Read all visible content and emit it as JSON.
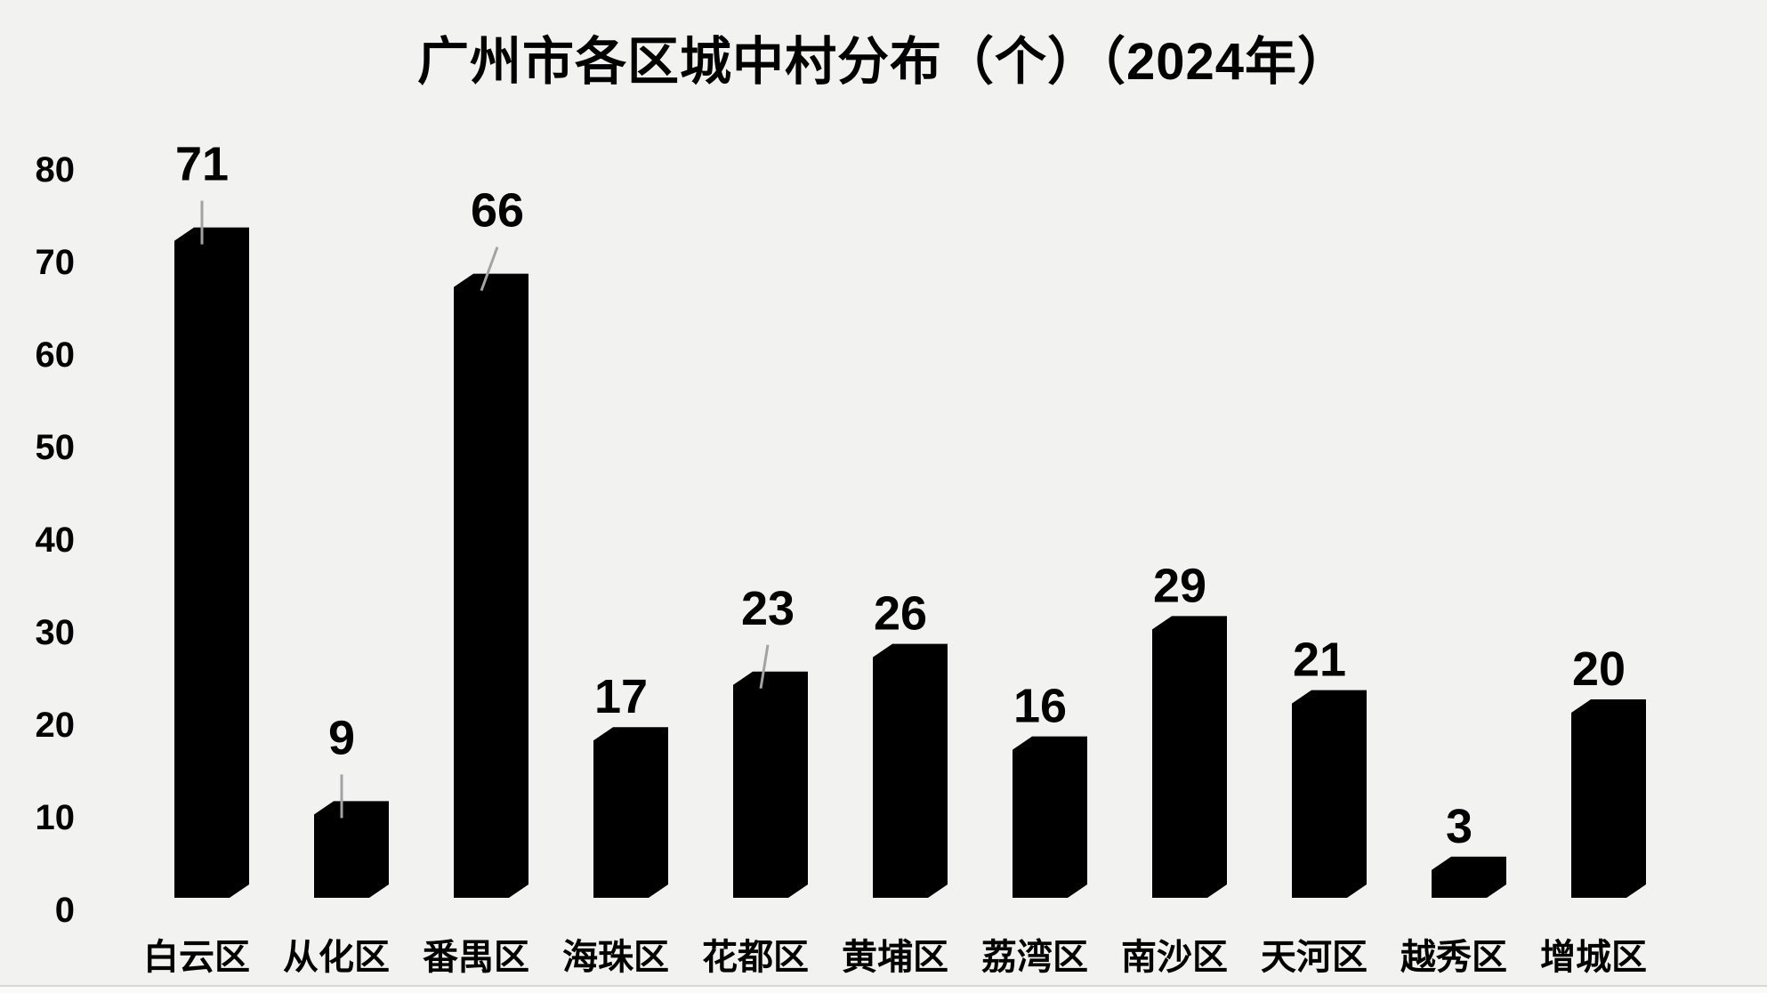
{
  "title": "广州市各区城中村分布（个）（2024年）",
  "colors": {
    "background": "#f2f2f0",
    "bar": "#000000",
    "text": "#000000",
    "leader_line": "#a3a3a3",
    "bottom_edge_line": "#d8d8d8",
    "bottom_strip": "#fafaf9"
  },
  "chart_data": {
    "type": "bar",
    "title": "广州市各区城中村分布（个）（2024年）",
    "categories": [
      "白云区",
      "从化区",
      "番禺区",
      "海珠区",
      "花都区",
      "黄埔区",
      "荔湾区",
      "南沙区",
      "天河区",
      "越秀区",
      "增城区"
    ],
    "values": [
      71,
      9,
      66,
      17,
      23,
      26,
      16,
      29,
      21,
      3,
      20
    ],
    "xlabel": "",
    "ylabel": "",
    "ylim": [
      0,
      80
    ],
    "yticks": [
      0,
      10,
      20,
      30,
      40,
      50,
      60,
      70,
      80
    ],
    "grid": false,
    "legend_position": "none",
    "bar_style": "3d-silhouette",
    "value_labels_shown": true,
    "label_leader_lines": [
      true,
      true,
      true,
      false,
      true,
      false,
      false,
      false,
      false,
      false,
      false
    ]
  }
}
